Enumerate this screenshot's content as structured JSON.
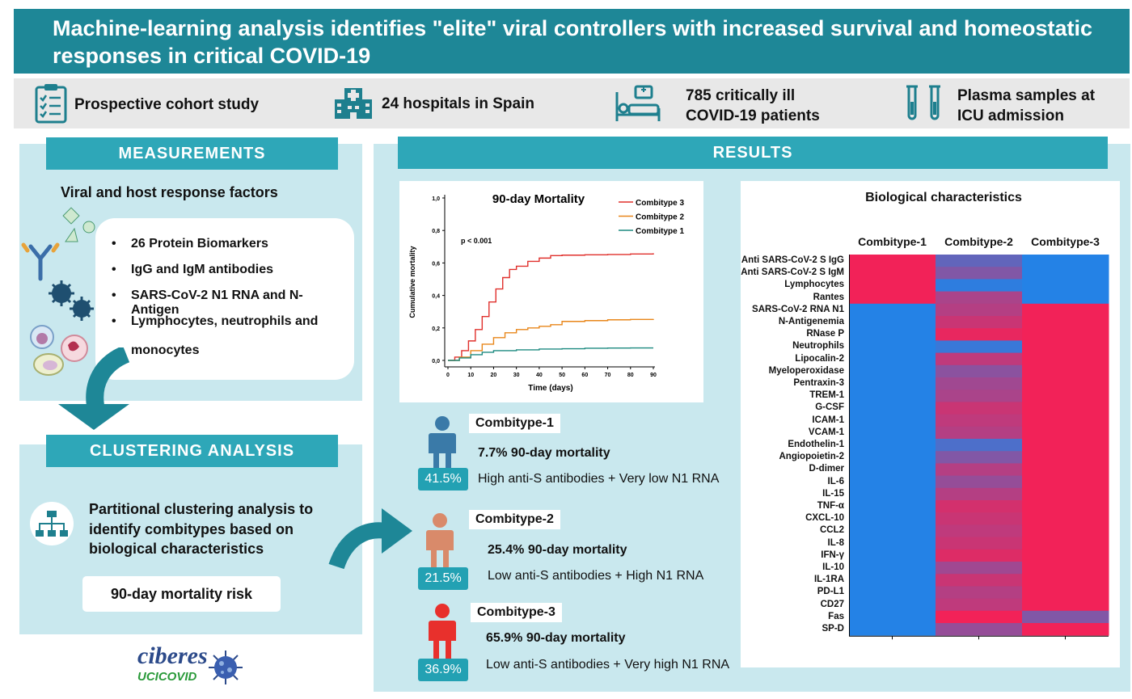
{
  "title": "Machine-learning analysis identifies \"elite\" viral controllers with increased survival and homeostatic responses in critical COVID-19",
  "info": {
    "study": "Prospective cohort study",
    "hospitals": "24 hospitals in Spain",
    "patients_line1": "785 critically ill",
    "patients_line2": "COVID-19 patients",
    "samples_line1": "Plasma samples at",
    "samples_line2": "ICU admission"
  },
  "measurements": {
    "header": "MEASUREMENTS",
    "subtitle": "Viral and host response factors",
    "bullets": [
      "26 Protein Biomarkers",
      "IgG and IgM antibodies",
      "SARS-CoV-2 N1 RNA and N-Antigen",
      "Lymphocytes, neutrophils and",
      "monocytes"
    ]
  },
  "clustering": {
    "header": "CLUSTERING ANALYSIS",
    "text_line1": "Partitional clustering analysis to",
    "text_line2": "identify combitypes based on",
    "text_line3": "biological characteristics",
    "risk_label": "90-day mortality risk"
  },
  "logo": {
    "name": "ciberes",
    "sub": "UCICOVID"
  },
  "results": {
    "header": "RESULTS",
    "combitypes": [
      {
        "label": "Combitype-1",
        "pct": "41.5%",
        "mortality": "7.7% 90-day mortality",
        "desc": "High anti-S antibodies + Very low N1 RNA",
        "color": "#3a7aa8"
      },
      {
        "label": "Combitype-2",
        "pct": "21.5%",
        "mortality": "25.4% 90-day mortality",
        "desc": "Low anti-S antibodies + High N1 RNA",
        "color": "#d98a6a"
      },
      {
        "label": "Combitype-3",
        "pct": "36.9%",
        "mortality": "65.9% 90-day mortality",
        "desc": "Low anti-S antibodies + Very high N1 RNA",
        "color": "#e8302c"
      }
    ]
  },
  "chart_data": [
    {
      "type": "line",
      "title": "90-day Mortality",
      "xlabel": "Time (days)",
      "ylabel": "Cumulative mortality",
      "annotation": "p < 0.001",
      "xlim": [
        0,
        90
      ],
      "ylim": [
        0,
        1.0
      ],
      "x_ticks": [
        "0",
        "10",
        "20",
        "30",
        "40",
        "50",
        "60",
        "70",
        "80",
        "90"
      ],
      "y_ticks": [
        "0,0",
        "0,2",
        "0,4",
        "0,6",
        "0,8",
        "1,0"
      ],
      "legend_position": "top-right",
      "series": [
        {
          "name": "Combitype 3",
          "color": "#e0302c",
          "x": [
            0,
            3,
            6,
            9,
            12,
            15,
            18,
            21,
            24,
            27,
            30,
            35,
            40,
            45,
            50,
            60,
            70,
            80,
            90
          ],
          "y": [
            0,
            0.02,
            0.06,
            0.12,
            0.19,
            0.27,
            0.36,
            0.44,
            0.51,
            0.56,
            0.58,
            0.61,
            0.63,
            0.645,
            0.648,
            0.65,
            0.652,
            0.655,
            0.66
          ]
        },
        {
          "name": "Combitype 2",
          "color": "#e8861a",
          "x": [
            0,
            5,
            10,
            15,
            20,
            25,
            30,
            35,
            40,
            45,
            50,
            60,
            70,
            80,
            90
          ],
          "y": [
            0,
            0.02,
            0.06,
            0.1,
            0.14,
            0.17,
            0.19,
            0.2,
            0.21,
            0.22,
            0.24,
            0.245,
            0.25,
            0.252,
            0.255
          ]
        },
        {
          "name": "Combitype 1",
          "color": "#1d8a80",
          "x": [
            0,
            5,
            10,
            15,
            20,
            30,
            40,
            50,
            60,
            70,
            80,
            90
          ],
          "y": [
            0,
            0.015,
            0.035,
            0.05,
            0.06,
            0.065,
            0.07,
            0.072,
            0.075,
            0.076,
            0.077,
            0.077
          ]
        }
      ]
    },
    {
      "type": "heatmap",
      "title": "Biological characteristics",
      "columns": [
        "Combitype-1",
        "Combitype-2",
        "Combitype-3"
      ],
      "rows": [
        "Anti SARS-CoV-2 S IgG",
        "Anti SARS-CoV-2 S IgM",
        "Lymphocytes",
        "Rantes",
        "SARS-CoV-2 RNA N1",
        "N-Antigenemia",
        "RNase P",
        "Neutrophils",
        "Lipocalin-2",
        "Myeloperoxidase",
        "Pentraxin-3",
        "TREM-1",
        "G-CSF",
        "ICAM-1",
        "VCAM-1",
        "Endothelin-1",
        "Angiopoietin-2",
        "D-dimer",
        "IL-6",
        "IL-15",
        "TNF-α",
        "CXCL-10",
        "CCL2",
        "IL-8",
        "IFN-γ",
        "IL-10",
        "IL-1RA",
        "PD-L1",
        "CD27",
        "Fas",
        "SP-D"
      ],
      "scale": "low=blue, high=red",
      "values": [
        [
          1,
          0.3,
          0
        ],
        [
          1,
          0.45,
          0
        ],
        [
          1,
          0.05,
          0
        ],
        [
          1,
          0.65,
          0
        ],
        [
          0,
          0.7,
          1
        ],
        [
          0,
          0.8,
          1
        ],
        [
          0,
          0.95,
          1
        ],
        [
          0,
          0.1,
          1
        ],
        [
          0,
          0.75,
          1
        ],
        [
          0,
          0.5,
          1
        ],
        [
          0,
          0.6,
          1
        ],
        [
          0,
          0.65,
          1
        ],
        [
          0,
          0.8,
          1
        ],
        [
          0,
          0.75,
          1
        ],
        [
          0,
          0.7,
          1
        ],
        [
          0,
          0.2,
          1
        ],
        [
          0,
          0.45,
          1
        ],
        [
          0,
          0.7,
          1
        ],
        [
          0,
          0.55,
          1
        ],
        [
          0,
          0.7,
          1
        ],
        [
          0,
          0.85,
          1
        ],
        [
          0,
          0.8,
          1
        ],
        [
          0,
          0.75,
          1
        ],
        [
          0,
          0.8,
          1
        ],
        [
          0,
          0.9,
          1
        ],
        [
          0,
          0.6,
          1
        ],
        [
          0,
          0.8,
          1
        ],
        [
          0,
          0.7,
          1
        ],
        [
          0,
          0.75,
          1
        ],
        [
          0,
          1,
          0.45
        ],
        [
          0,
          0.55,
          1
        ]
      ]
    }
  ]
}
